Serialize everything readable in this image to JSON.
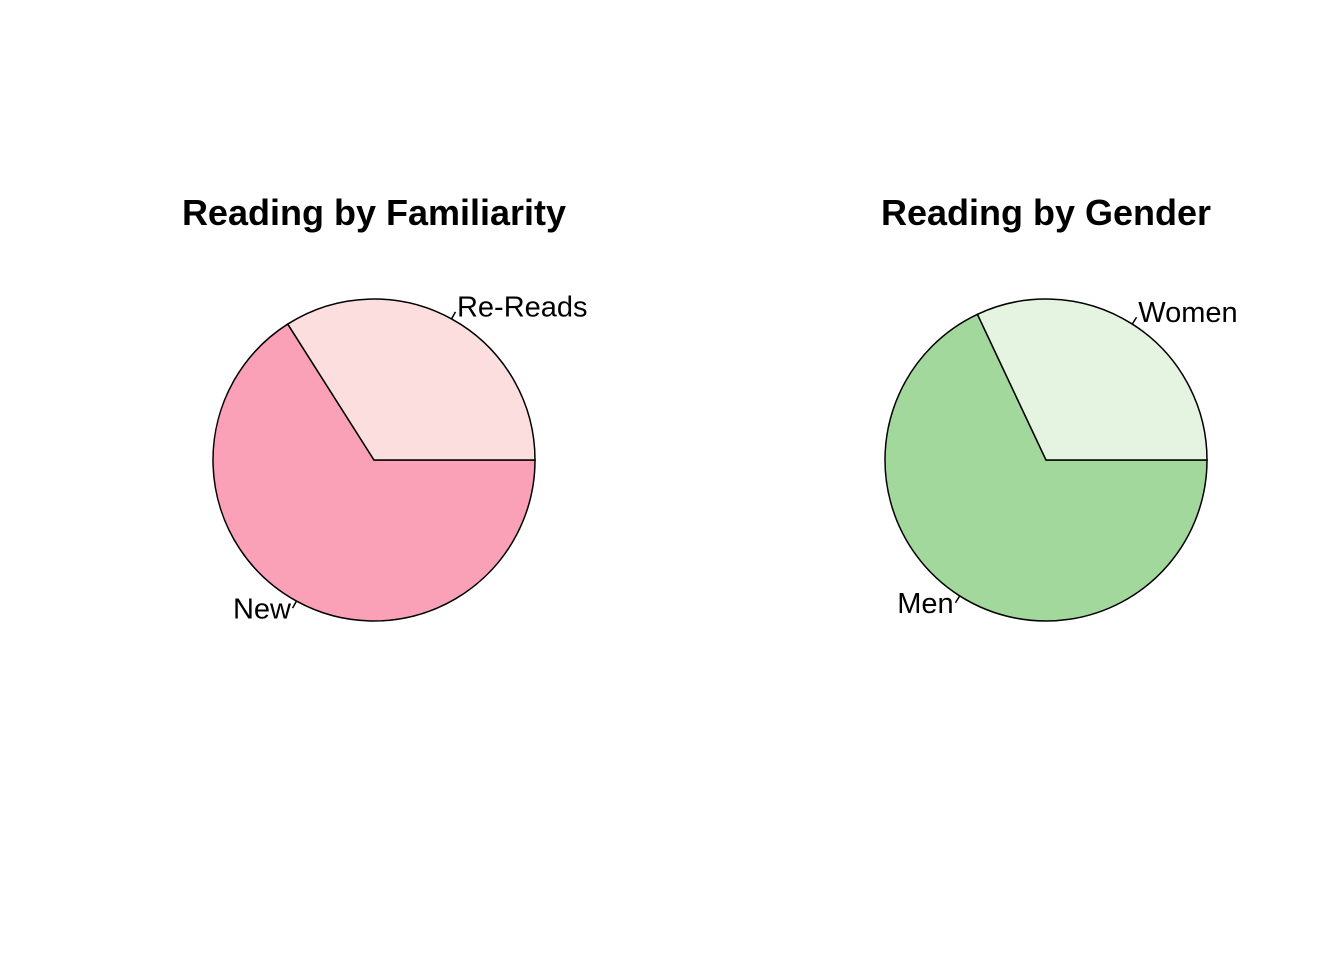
{
  "chart_data": [
    {
      "type": "pie",
      "title": "Reading by Familiarity",
      "slices": [
        {
          "label": "Re-Reads",
          "value": 34,
          "color": "#FCDEDF"
        },
        {
          "label": "New",
          "value": 66,
          "color": "#FAA1B8"
        }
      ]
    },
    {
      "type": "pie",
      "title": "Reading by Gender",
      "slices": [
        {
          "label": "Women",
          "value": 32,
          "color": "#E5F4E1"
        },
        {
          "label": "Men",
          "value": 68,
          "color": "#A2D89B"
        }
      ]
    }
  ]
}
